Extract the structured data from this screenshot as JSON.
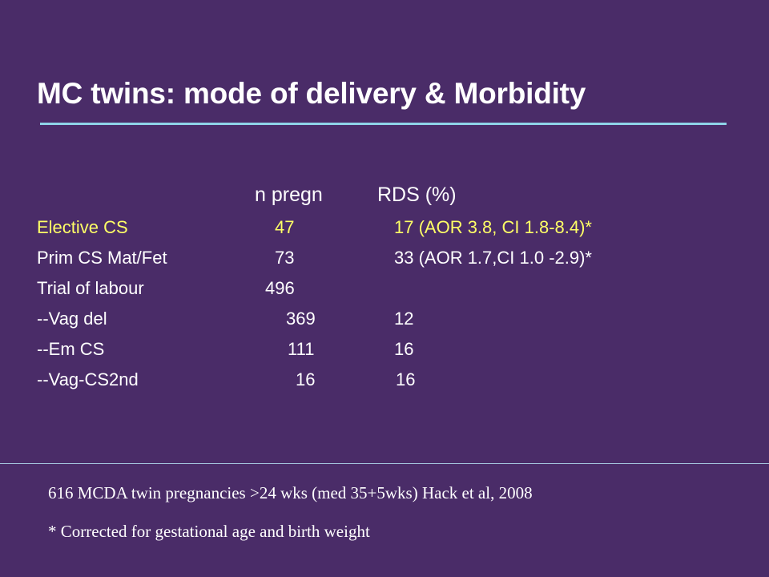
{
  "slide": {
    "title": "MC twins: mode of delivery & Morbidity",
    "accent_color": "#8fd4e8",
    "highlight_color": "#ffff66",
    "background_color": "#4a2c68"
  },
  "table": {
    "headers": {
      "n": "n pregn",
      "rds": "RDS (%)"
    },
    "rows": [
      {
        "label": "Elective CS",
        "n": "47",
        "rds": "17 (AOR 3.8, CI 1.8-8.4)*"
      },
      {
        "label": "Prim CS Mat/Fet",
        "n": "73",
        "rds": "33 (AOR 1.7,CI 1.0 -2.9)*"
      },
      {
        "label": "Trial of labour",
        "n": "496",
        "rds": ""
      },
      {
        "label": "--Vag del",
        "n": "369",
        "rds": "12"
      },
      {
        "label": "--Em CS",
        "n": "111",
        "rds": "16"
      },
      {
        "label": "--Vag-CS2nd",
        "n": "16",
        "rds": "16"
      }
    ]
  },
  "footer": {
    "source": "616 MCDA twin pregnancies >24 wks (med 35+5wks) Hack et al, 2008",
    "note": "* Corrected for gestational age and birth weight"
  }
}
